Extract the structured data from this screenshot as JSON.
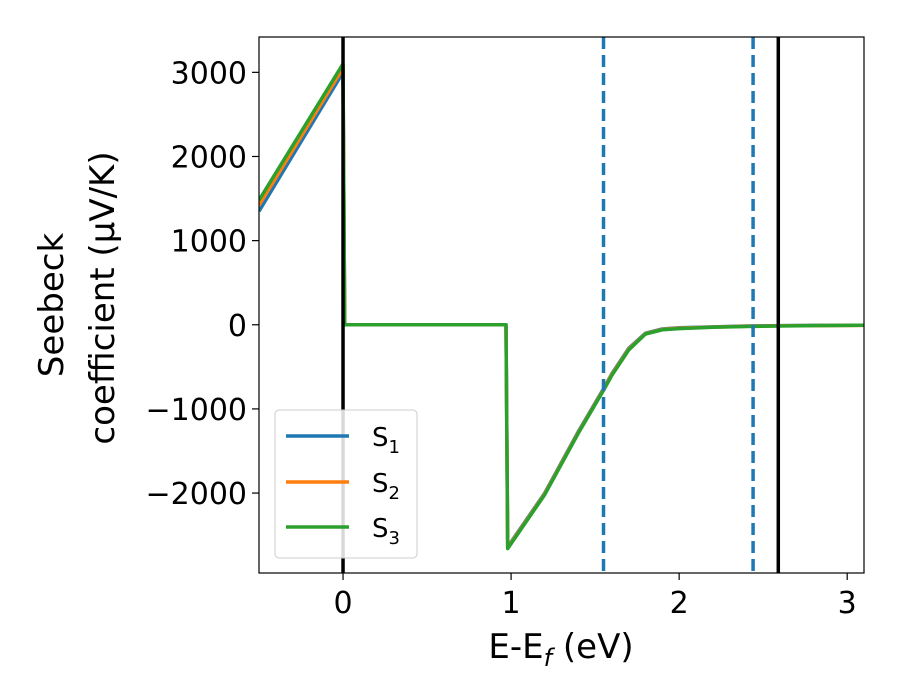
{
  "chart_data": {
    "type": "line",
    "xlabel": "E-E",
    "xlabel_sub": "f",
    "xlabel_unit": " (eV)",
    "ylabel_line1": "Seebeck",
    "ylabel_line2": "coefficient  (μV/K)",
    "xlim": [
      -0.5,
      3.1
    ],
    "ylim": [
      -2950,
      3420
    ],
    "x_ticks": [
      0,
      1,
      2,
      3
    ],
    "x_tick_labels": [
      "0",
      "1",
      "2",
      "3"
    ],
    "y_ticks": [
      3000,
      2000,
      1000,
      0,
      -1000,
      -2000
    ],
    "y_tick_labels": [
      "3000",
      "2000",
      "1000",
      "0",
      "−1000",
      "−2000"
    ],
    "grid": false,
    "legend_position": "lower-left",
    "series": [
      {
        "name": "S",
        "sub": "1",
        "color": "#1f77b4",
        "x": [
          -0.5,
          0.0,
          0.01,
          0.97,
          0.98,
          1.2,
          1.4,
          1.55,
          1.6,
          1.7,
          1.8,
          1.9,
          2.0,
          2.2,
          2.4,
          2.6,
          2.8,
          3.1
        ],
        "y": [
          1350,
          3000,
          0,
          0,
          -2640,
          -2000,
          -1270,
          -760,
          -580,
          -280,
          -100,
          -50,
          -35,
          -25,
          -15,
          -10,
          -8,
          -5
        ]
      },
      {
        "name": "S",
        "sub": "2",
        "color": "#ff7f0e",
        "x": [
          -0.5,
          0.0,
          0.01,
          0.97,
          0.98,
          1.2,
          1.4,
          1.55,
          1.6,
          1.7,
          1.8,
          1.9,
          2.0,
          2.2,
          2.4,
          2.6,
          2.8,
          3.1
        ],
        "y": [
          1420,
          3050,
          0,
          0,
          -2650,
          -2010,
          -1280,
          -770,
          -590,
          -290,
          -105,
          -55,
          -40,
          -28,
          -18,
          -12,
          -10,
          -8
        ]
      },
      {
        "name": "S",
        "sub": "3",
        "color": "#2ca02c",
        "x": [
          -0.5,
          0.0,
          0.01,
          0.97,
          0.98,
          1.2,
          1.4,
          1.55,
          1.6,
          1.7,
          1.8,
          1.9,
          2.0,
          2.2,
          2.4,
          2.6,
          2.8,
          3.1
        ],
        "y": [
          1480,
          3100,
          0,
          0,
          -2660,
          -2020,
          -1290,
          -780,
          -600,
          -300,
          -110,
          -60,
          -45,
          -30,
          -20,
          -15,
          -10,
          -5
        ]
      }
    ],
    "vertical_lines": [
      {
        "x": 0.0,
        "style": "solid",
        "color": "#000000"
      },
      {
        "x": 2.59,
        "style": "solid",
        "color": "#000000"
      },
      {
        "x": 1.55,
        "style": "dashed",
        "color": "#1f77b4"
      },
      {
        "x": 2.44,
        "style": "dashed",
        "color": "#1f77b4"
      }
    ]
  }
}
